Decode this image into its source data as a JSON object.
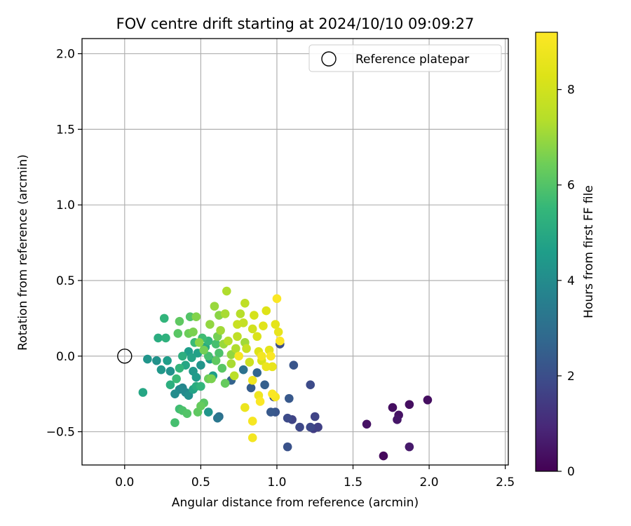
{
  "chart_data": {
    "type": "scatter",
    "title": "FOV centre drift starting at 2024/10/10 09:09:27",
    "xlabel": "Angular distance from reference (arcmin)",
    "ylabel": "Rotation from reference (arcmin)",
    "xlim": [
      -0.28,
      2.52
    ],
    "ylim": [
      -0.72,
      2.1
    ],
    "xticks": [
      0.0,
      0.5,
      1.0,
      1.5,
      2.0,
      2.5
    ],
    "xtick_labels": [
      "0.0",
      "0.5",
      "1.0",
      "1.5",
      "2.0",
      "2.5"
    ],
    "yticks": [
      -0.5,
      0.0,
      0.5,
      1.0,
      1.5,
      2.0
    ],
    "ytick_labels": [
      "−0.5",
      "0.0",
      "0.5",
      "1.0",
      "1.5",
      "2.0"
    ],
    "grid": true,
    "legend": {
      "position": "upper right",
      "entries": [
        "Reference platepar"
      ]
    },
    "reference_point": {
      "x": 0.0,
      "y": 0.0
    },
    "colorbar": {
      "label": "Hours from first FF file",
      "colormap": "viridis",
      "range": [
        0,
        9.2
      ],
      "ticks": [
        0,
        2,
        4,
        6,
        8
      ],
      "tick_labels": [
        "0",
        "2",
        "4",
        "6",
        "8"
      ]
    },
    "series": [
      {
        "points": [
          {
            "x": 1.7,
            "y": -0.66,
            "h": 0.2
          },
          {
            "x": 1.59,
            "y": -0.45,
            "h": 0.4
          },
          {
            "x": 1.76,
            "y": -0.34,
            "h": 0.3
          },
          {
            "x": 1.79,
            "y": -0.42,
            "h": 0.5
          },
          {
            "x": 1.8,
            "y": -0.39,
            "h": 0.4
          },
          {
            "x": 1.87,
            "y": -0.32,
            "h": 0.3
          },
          {
            "x": 1.99,
            "y": -0.29,
            "h": 0.3
          },
          {
            "x": 1.87,
            "y": -0.6,
            "h": 0.6
          },
          {
            "x": 1.27,
            "y": -0.47,
            "h": 1.6
          },
          {
            "x": 1.25,
            "y": -0.4,
            "h": 1.7
          },
          {
            "x": 1.24,
            "y": -0.48,
            "h": 1.5
          },
          {
            "x": 1.22,
            "y": -0.47,
            "h": 1.8
          },
          {
            "x": 1.22,
            "y": -0.19,
            "h": 1.9
          },
          {
            "x": 1.15,
            "y": -0.47,
            "h": 1.8
          },
          {
            "x": 1.1,
            "y": -0.42,
            "h": 1.7
          },
          {
            "x": 1.07,
            "y": -0.41,
            "h": 1.9
          },
          {
            "x": 1.08,
            "y": -0.28,
            "h": 2.3
          },
          {
            "x": 1.07,
            "y": -0.6,
            "h": 2.1
          },
          {
            "x": 1.11,
            "y": -0.06,
            "h": 2.2
          },
          {
            "x": 1.02,
            "y": 0.08,
            "h": 2.0
          },
          {
            "x": 0.99,
            "y": -0.37,
            "h": 2.2
          },
          {
            "x": 0.96,
            "y": -0.37,
            "h": 2.3
          },
          {
            "x": 0.98,
            "y": -0.27,
            "h": 1.9
          },
          {
            "x": 0.92,
            "y": -0.19,
            "h": 2.5
          },
          {
            "x": 0.83,
            "y": -0.21,
            "h": 2.4
          },
          {
            "x": 0.87,
            "y": -0.11,
            "h": 2.7
          },
          {
            "x": 0.7,
            "y": -0.16,
            "h": 2.6
          },
          {
            "x": 0.62,
            "y": -0.4,
            "h": 3.0
          },
          {
            "x": 0.61,
            "y": -0.41,
            "h": 3.3
          },
          {
            "x": 0.78,
            "y": -0.09,
            "h": 3.1
          },
          {
            "x": 0.55,
            "y": -0.37,
            "h": 4.3
          },
          {
            "x": 0.4,
            "y": -0.24,
            "h": 3.9
          },
          {
            "x": 0.42,
            "y": -0.26,
            "h": 4.1
          },
          {
            "x": 0.36,
            "y": -0.22,
            "h": 3.9
          },
          {
            "x": 0.33,
            "y": -0.25,
            "h": 4.0
          },
          {
            "x": 0.38,
            "y": -0.21,
            "h": 3.8
          },
          {
            "x": 0.3,
            "y": -0.1,
            "h": 4.2
          },
          {
            "x": 0.24,
            "y": -0.09,
            "h": 4.4
          },
          {
            "x": 0.28,
            "y": -0.03,
            "h": 4.6
          },
          {
            "x": 0.21,
            "y": -0.03,
            "h": 4.2
          },
          {
            "x": 0.15,
            "y": -0.02,
            "h": 4.3
          },
          {
            "x": 0.12,
            "y": -0.24,
            "h": 4.9
          },
          {
            "x": 0.22,
            "y": 0.12,
            "h": 5.1
          },
          {
            "x": 0.27,
            "y": 0.12,
            "h": 5.3
          },
          {
            "x": 0.26,
            "y": 0.25,
            "h": 5.4
          },
          {
            "x": 0.3,
            "y": -0.19,
            "h": 5.2
          },
          {
            "x": 0.34,
            "y": -0.15,
            "h": 5.6
          },
          {
            "x": 0.33,
            "y": -0.44,
            "h": 5.8
          },
          {
            "x": 0.36,
            "y": -0.35,
            "h": 5.7
          },
          {
            "x": 0.38,
            "y": -0.36,
            "h": 5.9
          },
          {
            "x": 0.41,
            "y": -0.38,
            "h": 6.0
          },
          {
            "x": 0.48,
            "y": -0.37,
            "h": 6.2
          },
          {
            "x": 0.5,
            "y": -0.33,
            "h": 6.3
          },
          {
            "x": 0.52,
            "y": -0.31,
            "h": 6.1
          },
          {
            "x": 0.45,
            "y": -0.1,
            "h": 4.4
          },
          {
            "x": 0.47,
            "y": -0.14,
            "h": 4.5
          },
          {
            "x": 0.5,
            "y": -0.06,
            "h": 4.3
          },
          {
            "x": 0.42,
            "y": 0.03,
            "h": 4.6
          },
          {
            "x": 0.44,
            "y": -0.01,
            "h": 4.8
          },
          {
            "x": 0.48,
            "y": 0.02,
            "h": 4.7
          },
          {
            "x": 0.53,
            "y": 0.06,
            "h": 5.0
          },
          {
            "x": 0.56,
            "y": -0.02,
            "h": 4.5
          },
          {
            "x": 0.58,
            "y": -0.13,
            "h": 4.6
          },
          {
            "x": 0.4,
            "y": -0.06,
            "h": 4.9
          },
          {
            "x": 0.38,
            "y": 0.0,
            "h": 5.2
          },
          {
            "x": 0.36,
            "y": -0.08,
            "h": 5.4
          },
          {
            "x": 0.46,
            "y": 0.09,
            "h": 5.6
          },
          {
            "x": 0.51,
            "y": 0.12,
            "h": 5.7
          },
          {
            "x": 0.55,
            "y": 0.1,
            "h": 5.5
          },
          {
            "x": 0.6,
            "y": 0.08,
            "h": 5.8
          },
          {
            "x": 0.62,
            "y": 0.02,
            "h": 5.9
          },
          {
            "x": 0.64,
            "y": -0.08,
            "h": 6.1
          },
          {
            "x": 0.66,
            "y": -0.18,
            "h": 6.3
          },
          {
            "x": 0.55,
            "y": -0.15,
            "h": 6.4
          },
          {
            "x": 0.57,
            "y": -0.15,
            "h": 6.6
          },
          {
            "x": 0.43,
            "y": 0.26,
            "h": 6.0
          },
          {
            "x": 0.36,
            "y": 0.23,
            "h": 6.2
          },
          {
            "x": 0.35,
            "y": 0.15,
            "h": 6.1
          },
          {
            "x": 0.42,
            "y": 0.15,
            "h": 6.4
          },
          {
            "x": 0.45,
            "y": 0.16,
            "h": 6.6
          },
          {
            "x": 0.47,
            "y": 0.26,
            "h": 6.7
          },
          {
            "x": 0.49,
            "y": 0.09,
            "h": 6.8
          },
          {
            "x": 0.52,
            "y": 0.04,
            "h": 6.5
          },
          {
            "x": 0.56,
            "y": 0.21,
            "h": 6.9
          },
          {
            "x": 0.59,
            "y": 0.33,
            "h": 7.0
          },
          {
            "x": 0.62,
            "y": 0.27,
            "h": 6.8
          },
          {
            "x": 0.63,
            "y": 0.17,
            "h": 7.1
          },
          {
            "x": 0.65,
            "y": 0.08,
            "h": 7.0
          },
          {
            "x": 0.66,
            "y": 0.28,
            "h": 7.2
          },
          {
            "x": 0.67,
            "y": 0.43,
            "h": 7.3
          },
          {
            "x": 0.68,
            "y": 0.1,
            "h": 7.4
          },
          {
            "x": 0.7,
            "y": -0.05,
            "h": 7.2
          },
          {
            "x": 0.72,
            "y": -0.13,
            "h": 7.5
          },
          {
            "x": 0.74,
            "y": 0.13,
            "h": 7.6
          },
          {
            "x": 0.76,
            "y": 0.28,
            "h": 7.4
          },
          {
            "x": 0.78,
            "y": 0.22,
            "h": 7.7
          },
          {
            "x": 0.79,
            "y": 0.35,
            "h": 7.6
          },
          {
            "x": 0.8,
            "y": 0.05,
            "h": 7.8
          },
          {
            "x": 0.82,
            "y": -0.04,
            "h": 7.9
          },
          {
            "x": 0.84,
            "y": 0.18,
            "h": 8.0
          },
          {
            "x": 0.85,
            "y": 0.27,
            "h": 8.1
          },
          {
            "x": 0.87,
            "y": 0.13,
            "h": 8.2
          },
          {
            "x": 0.88,
            "y": 0.03,
            "h": 8.3
          },
          {
            "x": 0.9,
            "y": -0.03,
            "h": 8.2
          },
          {
            "x": 0.91,
            "y": 0.2,
            "h": 8.4
          },
          {
            "x": 0.93,
            "y": 0.3,
            "h": 8.3
          },
          {
            "x": 0.95,
            "y": 0.04,
            "h": 8.5
          },
          {
            "x": 0.97,
            "y": -0.07,
            "h": 8.6
          },
          {
            "x": 0.99,
            "y": 0.21,
            "h": 8.5
          },
          {
            "x": 1.01,
            "y": 0.16,
            "h": 8.6
          },
          {
            "x": 0.79,
            "y": -0.34,
            "h": 8.7
          },
          {
            "x": 0.84,
            "y": -0.43,
            "h": 9.0
          },
          {
            "x": 0.84,
            "y": -0.54,
            "h": 8.9
          },
          {
            "x": 0.88,
            "y": -0.26,
            "h": 8.8
          },
          {
            "x": 0.89,
            "y": -0.3,
            "h": 9.1
          },
          {
            "x": 0.97,
            "y": -0.25,
            "h": 9.1
          },
          {
            "x": 0.99,
            "y": -0.27,
            "h": 9.0
          },
          {
            "x": 1.0,
            "y": 0.38,
            "h": 9.1
          },
          {
            "x": 1.02,
            "y": 0.1,
            "h": 9.2
          },
          {
            "x": 0.75,
            "y": 0.0,
            "h": 9.0
          },
          {
            "x": 0.84,
            "y": -0.16,
            "h": 8.8
          },
          {
            "x": 0.9,
            "y": 0.0,
            "h": 8.9
          },
          {
            "x": 0.96,
            "y": 0.0,
            "h": 9.1
          },
          {
            "x": 0.93,
            "y": -0.07,
            "h": 8.7
          },
          {
            "x": 0.79,
            "y": 0.09,
            "h": 7.1
          },
          {
            "x": 0.73,
            "y": 0.05,
            "h": 7.3
          },
          {
            "x": 0.7,
            "y": 0.01,
            "h": 6.9
          },
          {
            "x": 0.6,
            "y": -0.03,
            "h": 6.2
          },
          {
            "x": 0.5,
            "y": -0.2,
            "h": 5.4
          },
          {
            "x": 0.47,
            "y": -0.2,
            "h": 5.1
          },
          {
            "x": 0.45,
            "y": -0.22,
            "h": 4.8
          },
          {
            "x": 0.55,
            "y": 0.0,
            "h": 5.8
          },
          {
            "x": 0.61,
            "y": 0.13,
            "h": 6.5
          },
          {
            "x": 0.74,
            "y": 0.21,
            "h": 7.8
          }
        ]
      }
    ]
  }
}
